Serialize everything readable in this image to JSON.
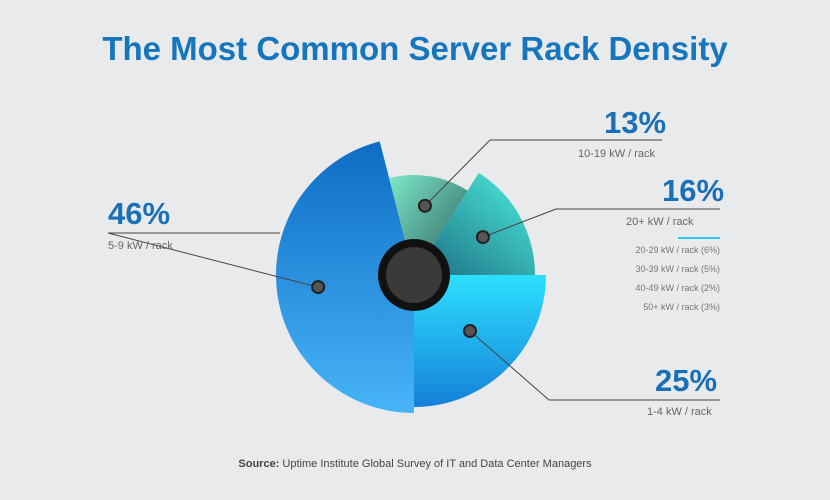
{
  "title": "The Most Common Server Rack Density",
  "chart_data": {
    "type": "pie",
    "title": "The Most Common Server Rack Density",
    "categories": [
      "1-4 kW / rack",
      "5-9 kW / rack",
      "10-19 kW / rack",
      "20+ kW / rack"
    ],
    "values": [
      25,
      46,
      13,
      16
    ],
    "labels": [
      "25%",
      "46%",
      "13%",
      "16%"
    ],
    "colors": [
      "#29c8f0",
      "#1a8ee6",
      "#5fd6bf",
      "#3fe0d0"
    ],
    "breakdown_20plus": [
      "20-29 kW / rack (6%)",
      "30-39 kW / rack (5%)",
      "40-49 kW / rack (2%)",
      "50+ kW / rack (3%)"
    ]
  },
  "source_label": "Source:",
  "source_text": " Uptime Institute Global Survey of IT and Data Center Managers"
}
